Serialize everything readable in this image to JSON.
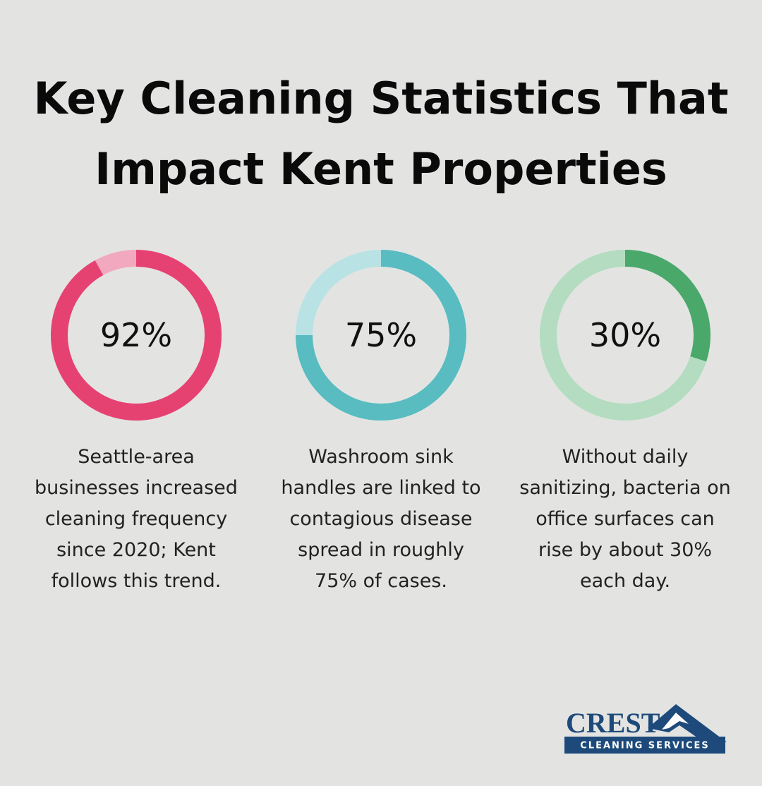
{
  "title": "Key Cleaning Statistics That Impact Kent Properties",
  "chart_data": [
    {
      "type": "donut",
      "values": [
        92
      ],
      "value_labels": [
        "92%"
      ],
      "color": "#e54272",
      "track_color": "#f2a9bf",
      "caption": "Seattle-area businesses increased cleaning frequency since 2020; Kent follows this trend."
    },
    {
      "type": "donut",
      "values": [
        75
      ],
      "value_labels": [
        "75%"
      ],
      "color": "#58bcc1",
      "track_color": "#b9e2e4",
      "caption": "Washroom sink handles are linked to contagious disease spread in roughly 75% of cases."
    },
    {
      "type": "donut",
      "values": [
        30
      ],
      "value_labels": [
        "30%"
      ],
      "color": "#4aa86a",
      "track_color": "#b3dcc0",
      "caption": "Without daily sanitizing, bacteria on office surfaces can rise by about 30% each day."
    }
  ],
  "logo": {
    "name": "CREST",
    "tagline": "CLEANING SERVICES"
  }
}
